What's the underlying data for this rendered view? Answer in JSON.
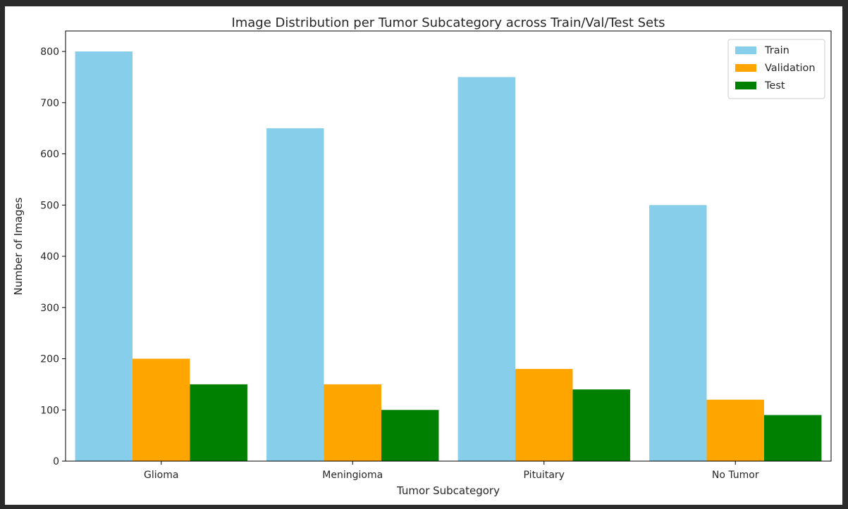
{
  "chart_data": {
    "type": "bar",
    "title": "Image Distribution per Tumor Subcategory across Train/Val/Test Sets",
    "xlabel": "Tumor Subcategory",
    "ylabel": "Number of Images",
    "categories": [
      "Glioma",
      "Meningioma",
      "Pituitary",
      "No Tumor"
    ],
    "series": [
      {
        "name": "Train",
        "color": "#87ceeb",
        "values": [
          800,
          650,
          750,
          500
        ]
      },
      {
        "name": "Validation",
        "color": "#ffa500",
        "values": [
          200,
          150,
          180,
          120
        ]
      },
      {
        "name": "Test",
        "color": "#008000",
        "values": [
          150,
          100,
          140,
          90
        ]
      }
    ],
    "ylim": [
      0,
      840
    ],
    "yticks": [
      0,
      100,
      200,
      300,
      400,
      500,
      600,
      700,
      800
    ],
    "grid": false,
    "legend": "top-right"
  }
}
